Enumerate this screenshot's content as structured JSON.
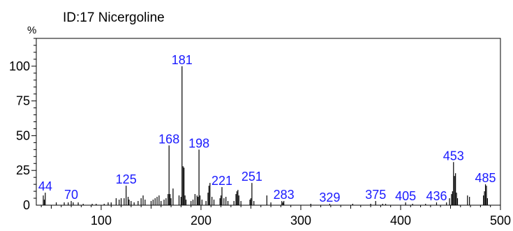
{
  "chart_data": {
    "type": "bar",
    "title": "ID:17 Nicergoline",
    "ylabel": "%",
    "xlabel": "",
    "xlim": [
      35,
      500
    ],
    "ylim": [
      0,
      120
    ],
    "x_ticks": [
      "100",
      "200",
      "300",
      "400",
      "500"
    ],
    "y_ticks": [
      "0",
      "25",
      "50",
      "75",
      "100"
    ],
    "grid": false,
    "bar_color": "#000000",
    "label_color": "#1a1aff",
    "labeled_peaks": [
      {
        "x": 44,
        "y": 9,
        "label": "44"
      },
      {
        "x": 70,
        "y": 3,
        "label": "70"
      },
      {
        "x": 125,
        "y": 14,
        "label": "125"
      },
      {
        "x": 168,
        "y": 43,
        "label": "168"
      },
      {
        "x": 181,
        "y": 100,
        "label": "181"
      },
      {
        "x": 198,
        "y": 40,
        "label": "198"
      },
      {
        "x": 221,
        "y": 13,
        "label": "221"
      },
      {
        "x": 251,
        "y": 16,
        "label": "251"
      },
      {
        "x": 283,
        "y": 3,
        "label": "283"
      },
      {
        "x": 329,
        "y": 1,
        "label": "329"
      },
      {
        "x": 375,
        "y": 3,
        "label": "375"
      },
      {
        "x": 405,
        "y": 2,
        "label": "405"
      },
      {
        "x": 436,
        "y": 2,
        "label": "436"
      },
      {
        "x": 453,
        "y": 31,
        "label": "453"
      },
      {
        "x": 485,
        "y": 15,
        "label": "485"
      }
    ],
    "other_peaks": [
      {
        "x": 42,
        "y": 7
      },
      {
        "x": 43,
        "y": 4
      },
      {
        "x": 55,
        "y": 2
      },
      {
        "x": 63,
        "y": 2
      },
      {
        "x": 67,
        "y": 2
      },
      {
        "x": 72,
        "y": 2
      },
      {
        "x": 77,
        "y": 2
      },
      {
        "x": 82,
        "y": 1
      },
      {
        "x": 91,
        "y": 1
      },
      {
        "x": 95,
        "y": 1
      },
      {
        "x": 103,
        "y": 1
      },
      {
        "x": 107,
        "y": 2
      },
      {
        "x": 110,
        "y": 2
      },
      {
        "x": 115,
        "y": 5
      },
      {
        "x": 118,
        "y": 4
      },
      {
        "x": 120,
        "y": 5
      },
      {
        "x": 123,
        "y": 5
      },
      {
        "x": 127,
        "y": 6
      },
      {
        "x": 128,
        "y": 4
      },
      {
        "x": 130,
        "y": 3
      },
      {
        "x": 133,
        "y": 2
      },
      {
        "x": 137,
        "y": 3
      },
      {
        "x": 140,
        "y": 5
      },
      {
        "x": 142,
        "y": 7
      },
      {
        "x": 144,
        "y": 4
      },
      {
        "x": 150,
        "y": 3
      },
      {
        "x": 152,
        "y": 4
      },
      {
        "x": 154,
        "y": 5
      },
      {
        "x": 156,
        "y": 6
      },
      {
        "x": 158,
        "y": 7
      },
      {
        "x": 160,
        "y": 3
      },
      {
        "x": 163,
        "y": 4
      },
      {
        "x": 165,
        "y": 5
      },
      {
        "x": 167,
        "y": 8
      },
      {
        "x": 169,
        "y": 8
      },
      {
        "x": 170,
        "y": 5
      },
      {
        "x": 172,
        "y": 12
      },
      {
        "x": 178,
        "y": 7
      },
      {
        "x": 180,
        "y": 6
      },
      {
        "x": 182,
        "y": 28
      },
      {
        "x": 183,
        "y": 27
      },
      {
        "x": 184,
        "y": 7
      },
      {
        "x": 185,
        "y": 4
      },
      {
        "x": 190,
        "y": 3
      },
      {
        "x": 192,
        "y": 4
      },
      {
        "x": 194,
        "y": 8
      },
      {
        "x": 196,
        "y": 7
      },
      {
        "x": 197,
        "y": 6
      },
      {
        "x": 199,
        "y": 7
      },
      {
        "x": 201,
        "y": 4
      },
      {
        "x": 205,
        "y": 3
      },
      {
        "x": 207,
        "y": 9
      },
      {
        "x": 208,
        "y": 14
      },
      {
        "x": 209,
        "y": 16
      },
      {
        "x": 211,
        "y": 6
      },
      {
        "x": 213,
        "y": 4
      },
      {
        "x": 219,
        "y": 5
      },
      {
        "x": 220,
        "y": 7
      },
      {
        "x": 223,
        "y": 5
      },
      {
        "x": 225,
        "y": 6
      },
      {
        "x": 227,
        "y": 3
      },
      {
        "x": 233,
        "y": 3
      },
      {
        "x": 235,
        "y": 8
      },
      {
        "x": 236,
        "y": 10
      },
      {
        "x": 237,
        "y": 11
      },
      {
        "x": 238,
        "y": 7
      },
      {
        "x": 240,
        "y": 3
      },
      {
        "x": 249,
        "y": 4
      },
      {
        "x": 250,
        "y": 5
      },
      {
        "x": 253,
        "y": 3
      },
      {
        "x": 266,
        "y": 7
      },
      {
        "x": 270,
        "y": 2
      },
      {
        "x": 281,
        "y": 3
      },
      {
        "x": 282,
        "y": 2
      },
      {
        "x": 310,
        "y": 1
      },
      {
        "x": 352,
        "y": 1
      },
      {
        "x": 370,
        "y": 1
      },
      {
        "x": 382,
        "y": 1
      },
      {
        "x": 385,
        "y": 1
      },
      {
        "x": 412,
        "y": 1
      },
      {
        "x": 425,
        "y": 1
      },
      {
        "x": 446,
        "y": 2
      },
      {
        "x": 449,
        "y": 5
      },
      {
        "x": 451,
        "y": 8
      },
      {
        "x": 452,
        "y": 10
      },
      {
        "x": 454,
        "y": 21
      },
      {
        "x": 455,
        "y": 23
      },
      {
        "x": 456,
        "y": 9
      },
      {
        "x": 457,
        "y": 5
      },
      {
        "x": 467,
        "y": 7
      },
      {
        "x": 469,
        "y": 6
      },
      {
        "x": 483,
        "y": 7
      },
      {
        "x": 484,
        "y": 10
      },
      {
        "x": 486,
        "y": 14
      },
      {
        "x": 487,
        "y": 5
      }
    ]
  }
}
